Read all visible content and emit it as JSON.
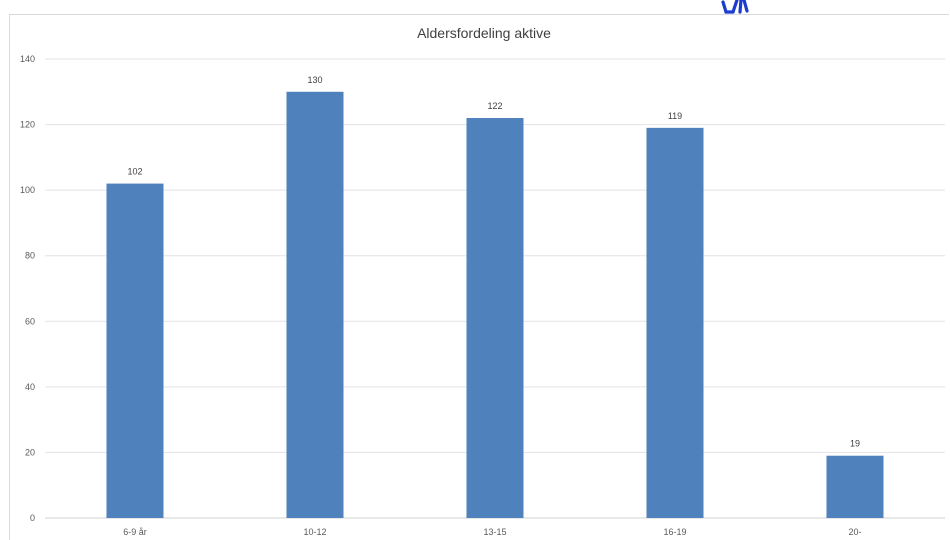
{
  "chart_data": {
    "type": "bar",
    "title": "Aldersfordeling aktive",
    "xlabel": "",
    "ylabel": "",
    "categories": [
      "6-9 år",
      "10-12",
      "13-15",
      "16-19",
      "20-"
    ],
    "values": [
      102,
      130,
      122,
      119,
      19
    ],
    "ylim": [
      0,
      140
    ],
    "yticks": [
      0,
      20,
      40,
      60,
      80,
      100,
      120,
      140
    ],
    "grid": true,
    "legend": "none",
    "bar_color": "#4f81bd"
  },
  "logo": {
    "color": "#1a3ccf",
    "icon": "club-logo-icon"
  }
}
